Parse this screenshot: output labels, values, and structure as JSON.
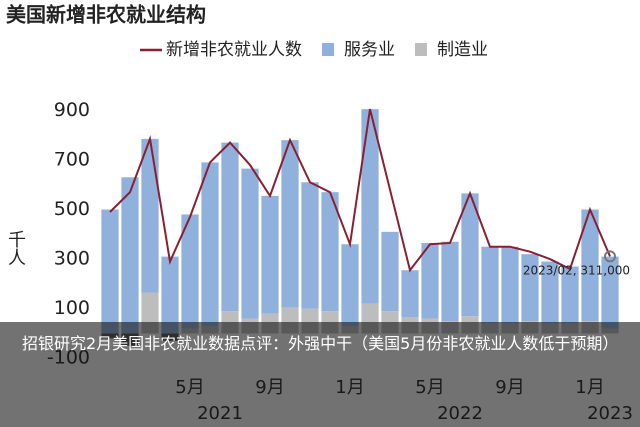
{
  "chart_data": {
    "type": "bar-line",
    "title": "美国新增非农就业结构",
    "y_label": "千人",
    "categories": [
      null,
      null,
      null,
      null,
      "5月",
      null,
      null,
      null,
      "9月",
      null,
      null,
      null,
      "1月",
      null,
      null,
      null,
      "5月",
      null,
      null,
      null,
      "9月",
      null,
      null,
      null,
      "1月",
      null
    ],
    "year_labels": [
      "2021",
      "2022",
      "2023"
    ],
    "series": [
      {
        "name": "新增非农就业人数",
        "color": "#8b1f32",
        "kind": "line",
        "values": [
          490,
          570,
          785,
          290,
          470,
          690,
          770,
          680,
          555,
          780,
          610,
          570,
          360,
          905,
          580,
          255,
          360,
          365,
          565,
          350,
          350,
          330,
          300,
          260,
          500,
          311
        ]
      },
      {
        "name": "服务业",
        "color": "#8fb1dc",
        "kind": "bar",
        "values": [
          500,
          630,
          620,
          310,
          460,
          660,
          680,
          605,
          475,
          675,
          510,
          480,
          330,
          785,
          320,
          190,
          305,
          320,
          495,
          310,
          310,
          270,
          250,
          230,
          450,
          290
        ]
      },
      {
        "name": "制造业",
        "color": "#bdbdbd",
        "kind": "bar",
        "values": [
          -20,
          -50,
          165,
          -30,
          20,
          30,
          90,
          60,
          80,
          105,
          100,
          90,
          30,
          120,
          90,
          65,
          60,
          50,
          70,
          40,
          40,
          50,
          40,
          40,
          50,
          20
        ]
      }
    ],
    "annotation": "2023/02, 311,000",
    "ylim": [
      -200,
      950
    ],
    "yticks": [
      -100,
      100,
      300,
      500,
      700,
      900
    ],
    "grid": false,
    "caption": "招银研究2月美国非农就业数据点评：外强中干（美国5月份非农就业人数低于预期）"
  }
}
